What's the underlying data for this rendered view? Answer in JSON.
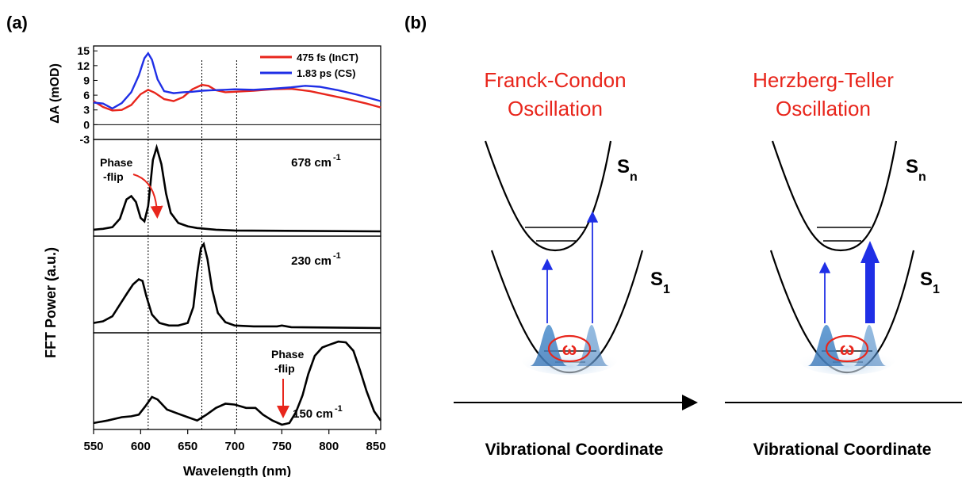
{
  "panel_a": {
    "label": "(a)",
    "ylabel_top": "ΔA (mOD)",
    "ylabel_fft": "FFT Power (a.u.)",
    "xlabel": "Wavelength (nm)",
    "annotations": {
      "phase_flip_1_line1": "Phase",
      "phase_flip_1_line2": "-flip",
      "phase_flip_2_line1": "Phase",
      "phase_flip_2_line2": "-flip"
    },
    "mode_labels": [
      "678 cm",
      "230 cm",
      "150 cm"
    ],
    "mode_sup": "-1"
  },
  "panel_b": {
    "label": "(b)",
    "left_title_line1": "Franck-Condon",
    "left_title_line2": "Oscillation",
    "right_title_line1": "Herzberg-Teller",
    "right_title_line2": "Oscillation",
    "axis_label": "Vibrational  Coordinate",
    "sn_main": "S",
    "sn_sub": "n",
    "s1_main": "S",
    "s1_sub": "1",
    "omega": "ω"
  },
  "colors": {
    "red": "#e8261c",
    "blue": "#1f2fe6",
    "gauss": "#3d7fc4"
  },
  "chart_data": [
    {
      "type": "line",
      "panel": "transient absorption spectra",
      "xlim": [
        550,
        855
      ],
      "ylim": [
        -3,
        16
      ],
      "yticks": [
        -3,
        0,
        3,
        6,
        9,
        12,
        15
      ],
      "ylabel": "ΔA (mOD)",
      "series": [
        {
          "name": "475 fs (InCT)",
          "color": "#e8261c",
          "points": [
            [
              550,
              4.8
            ],
            [
              560,
              3.6
            ],
            [
              570,
              2.9
            ],
            [
              580,
              3.0
            ],
            [
              590,
              4.0
            ],
            [
              600,
              6.2
            ],
            [
              608,
              7.1
            ],
            [
              615,
              6.5
            ],
            [
              625,
              5.2
            ],
            [
              635,
              4.8
            ],
            [
              645,
              5.6
            ],
            [
              655,
              7.2
            ],
            [
              665,
              8.1
            ],
            [
              672,
              7.9
            ],
            [
              680,
              7.0
            ],
            [
              690,
              6.6
            ],
            [
              700,
              6.7
            ],
            [
              720,
              6.9
            ],
            [
              740,
              7.2
            ],
            [
              760,
              7.3
            ],
            [
              780,
              6.8
            ],
            [
              800,
              6.0
            ],
            [
              820,
              5.2
            ],
            [
              840,
              4.3
            ],
            [
              855,
              3.5
            ]
          ]
        },
        {
          "name": "1.83 ps (CS)",
          "color": "#1f2fe6",
          "points": [
            [
              550,
              4.5
            ],
            [
              560,
              4.3
            ],
            [
              570,
              3.3
            ],
            [
              580,
              4.4
            ],
            [
              590,
              6.6
            ],
            [
              598,
              10.0
            ],
            [
              604,
              13.5
            ],
            [
              608,
              14.5
            ],
            [
              612,
              13.2
            ],
            [
              618,
              9.2
            ],
            [
              625,
              6.8
            ],
            [
              635,
              6.4
            ],
            [
              645,
              6.6
            ],
            [
              655,
              6.7
            ],
            [
              665,
              6.9
            ],
            [
              675,
              7.0
            ],
            [
              690,
              7.1
            ],
            [
              700,
              7.2
            ],
            [
              720,
              7.1
            ],
            [
              740,
              7.3
            ],
            [
              760,
              7.6
            ],
            [
              775,
              7.9
            ],
            [
              790,
              7.7
            ],
            [
              810,
              7.0
            ],
            [
              830,
              6.1
            ],
            [
              855,
              4.8
            ]
          ]
        }
      ]
    },
    {
      "type": "line",
      "panel": "FFT power 678 cm-1",
      "xlim": [
        550,
        855
      ],
      "series": [
        {
          "name": "678 cm-1",
          "color": "#000000",
          "points": [
            [
              550,
              0.02
            ],
            [
              560,
              0.03
            ],
            [
              570,
              0.05
            ],
            [
              578,
              0.15
            ],
            [
              585,
              0.38
            ],
            [
              590,
              0.42
            ],
            [
              595,
              0.35
            ],
            [
              600,
              0.16
            ],
            [
              604,
              0.12
            ],
            [
              608,
              0.3
            ],
            [
              613,
              0.85
            ],
            [
              617,
              1.0
            ],
            [
              622,
              0.8
            ],
            [
              627,
              0.45
            ],
            [
              632,
              0.22
            ],
            [
              640,
              0.1
            ],
            [
              650,
              0.06
            ],
            [
              660,
              0.04
            ],
            [
              680,
              0.02
            ],
            [
              700,
              0.01
            ],
            [
              855,
              0.0
            ]
          ]
        }
      ]
    },
    {
      "type": "line",
      "panel": "FFT power 230 cm-1",
      "xlim": [
        550,
        855
      ],
      "series": [
        {
          "name": "230 cm-1",
          "color": "#000000",
          "points": [
            [
              550,
              0.06
            ],
            [
              560,
              0.08
            ],
            [
              570,
              0.14
            ],
            [
              578,
              0.28
            ],
            [
              586,
              0.42
            ],
            [
              592,
              0.52
            ],
            [
              598,
              0.58
            ],
            [
              602,
              0.56
            ],
            [
              606,
              0.38
            ],
            [
              612,
              0.16
            ],
            [
              620,
              0.06
            ],
            [
              630,
              0.03
            ],
            [
              640,
              0.03
            ],
            [
              650,
              0.06
            ],
            [
              656,
              0.25
            ],
            [
              660,
              0.65
            ],
            [
              664,
              0.95
            ],
            [
              667,
              1.0
            ],
            [
              671,
              0.82
            ],
            [
              676,
              0.46
            ],
            [
              682,
              0.18
            ],
            [
              690,
              0.07
            ],
            [
              700,
              0.03
            ],
            [
              720,
              0.02
            ],
            [
              745,
              0.02
            ],
            [
              750,
              0.03
            ],
            [
              760,
              0.01
            ],
            [
              855,
              0.0
            ]
          ]
        }
      ]
    },
    {
      "type": "line",
      "panel": "FFT power 150 cm-1",
      "xlim": [
        550,
        855
      ],
      "series": [
        {
          "name": "150 cm-1",
          "color": "#000000",
          "points": [
            [
              550,
              0.02
            ],
            [
              565,
              0.05
            ],
            [
              580,
              0.09
            ],
            [
              590,
              0.1
            ],
            [
              598,
              0.12
            ],
            [
              605,
              0.22
            ],
            [
              612,
              0.33
            ],
            [
              618,
              0.3
            ],
            [
              628,
              0.18
            ],
            [
              640,
              0.13
            ],
            [
              650,
              0.09
            ],
            [
              660,
              0.05
            ],
            [
              670,
              0.12
            ],
            [
              680,
              0.2
            ],
            [
              690,
              0.25
            ],
            [
              700,
              0.24
            ],
            [
              712,
              0.2
            ],
            [
              722,
              0.2
            ],
            [
              730,
              0.12
            ],
            [
              740,
              0.05
            ],
            [
              750,
              0.0
            ],
            [
              758,
              0.02
            ],
            [
              765,
              0.15
            ],
            [
              772,
              0.35
            ],
            [
              778,
              0.6
            ],
            [
              785,
              0.82
            ],
            [
              793,
              0.92
            ],
            [
              800,
              0.95
            ],
            [
              810,
              0.99
            ],
            [
              818,
              0.98
            ],
            [
              826,
              0.88
            ],
            [
              833,
              0.65
            ],
            [
              840,
              0.4
            ],
            [
              848,
              0.16
            ],
            [
              855,
              0.05
            ]
          ]
        }
      ]
    }
  ],
  "x_axis": {
    "ticks": [
      550,
      600,
      650,
      700,
      750,
      800,
      850
    ],
    "label": "Wavelength (nm)"
  },
  "vlines_nm": [
    608,
    665,
    702
  ]
}
